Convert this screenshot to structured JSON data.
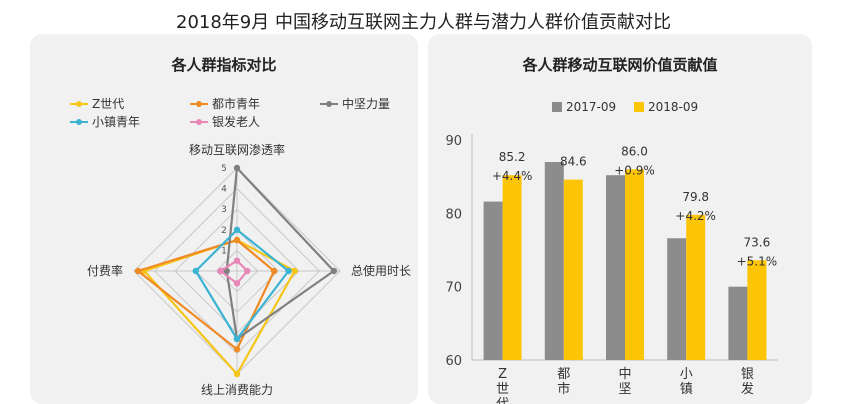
{
  "page": {
    "title": "2018年9月 中国移动互联网主力人群与潜力人群价值贡献对比"
  },
  "chart_data": [
    {
      "type": "radar",
      "title": "各人群指标对比",
      "axes": [
        "移动互联网渗透率",
        "总使用时长",
        "线上消费能力",
        "付费率"
      ],
      "rlim": [
        0,
        5
      ],
      "ticks": [
        "0",
        "1",
        "2",
        "3",
        "4",
        "5"
      ],
      "legend_position": "top",
      "series": [
        {
          "name": "Z世代",
          "color": "#f5c518",
          "values": [
            1.5,
            2.8,
            5.0,
            4.5
          ]
        },
        {
          "name": "都市青年",
          "color": "#f08a24",
          "values": [
            1.5,
            1.8,
            3.8,
            4.8
          ]
        },
        {
          "name": "中坚力量",
          "color": "#808080",
          "values": [
            5.0,
            4.7,
            3.3,
            0.5
          ]
        },
        {
          "name": "小镇青年",
          "color": "#3db3d3",
          "values": [
            2.0,
            2.5,
            3.3,
            2.0
          ]
        },
        {
          "name": "银发老人",
          "color": "#e887b8",
          "values": [
            0.5,
            0.5,
            0.6,
            0.8
          ]
        }
      ]
    },
    {
      "type": "bar",
      "title": "各人群移动互联网价值贡献值",
      "categories": [
        "Z世代",
        "都市",
        "中坚",
        "小镇",
        "银发"
      ],
      "ylim": [
        60,
        90
      ],
      "yticks": [
        "60",
        "70",
        "80",
        "90"
      ],
      "legend_position": "top",
      "series": [
        {
          "name": "2017-09",
          "color": "#8c8c8c",
          "values": [
            81.6,
            87.0,
            85.2,
            76.6,
            70.0
          ]
        },
        {
          "name": "2018-09",
          "color": "#fcc508",
          "values": [
            85.2,
            84.6,
            86.0,
            79.8,
            73.6
          ]
        }
      ],
      "value_labels": [
        "85.2",
        "84.6",
        "86.0",
        "79.8",
        "73.6"
      ],
      "growth_labels": [
        "+4.4%",
        "",
        "+0.9%",
        "+4.2%",
        "+5.1%"
      ]
    }
  ]
}
